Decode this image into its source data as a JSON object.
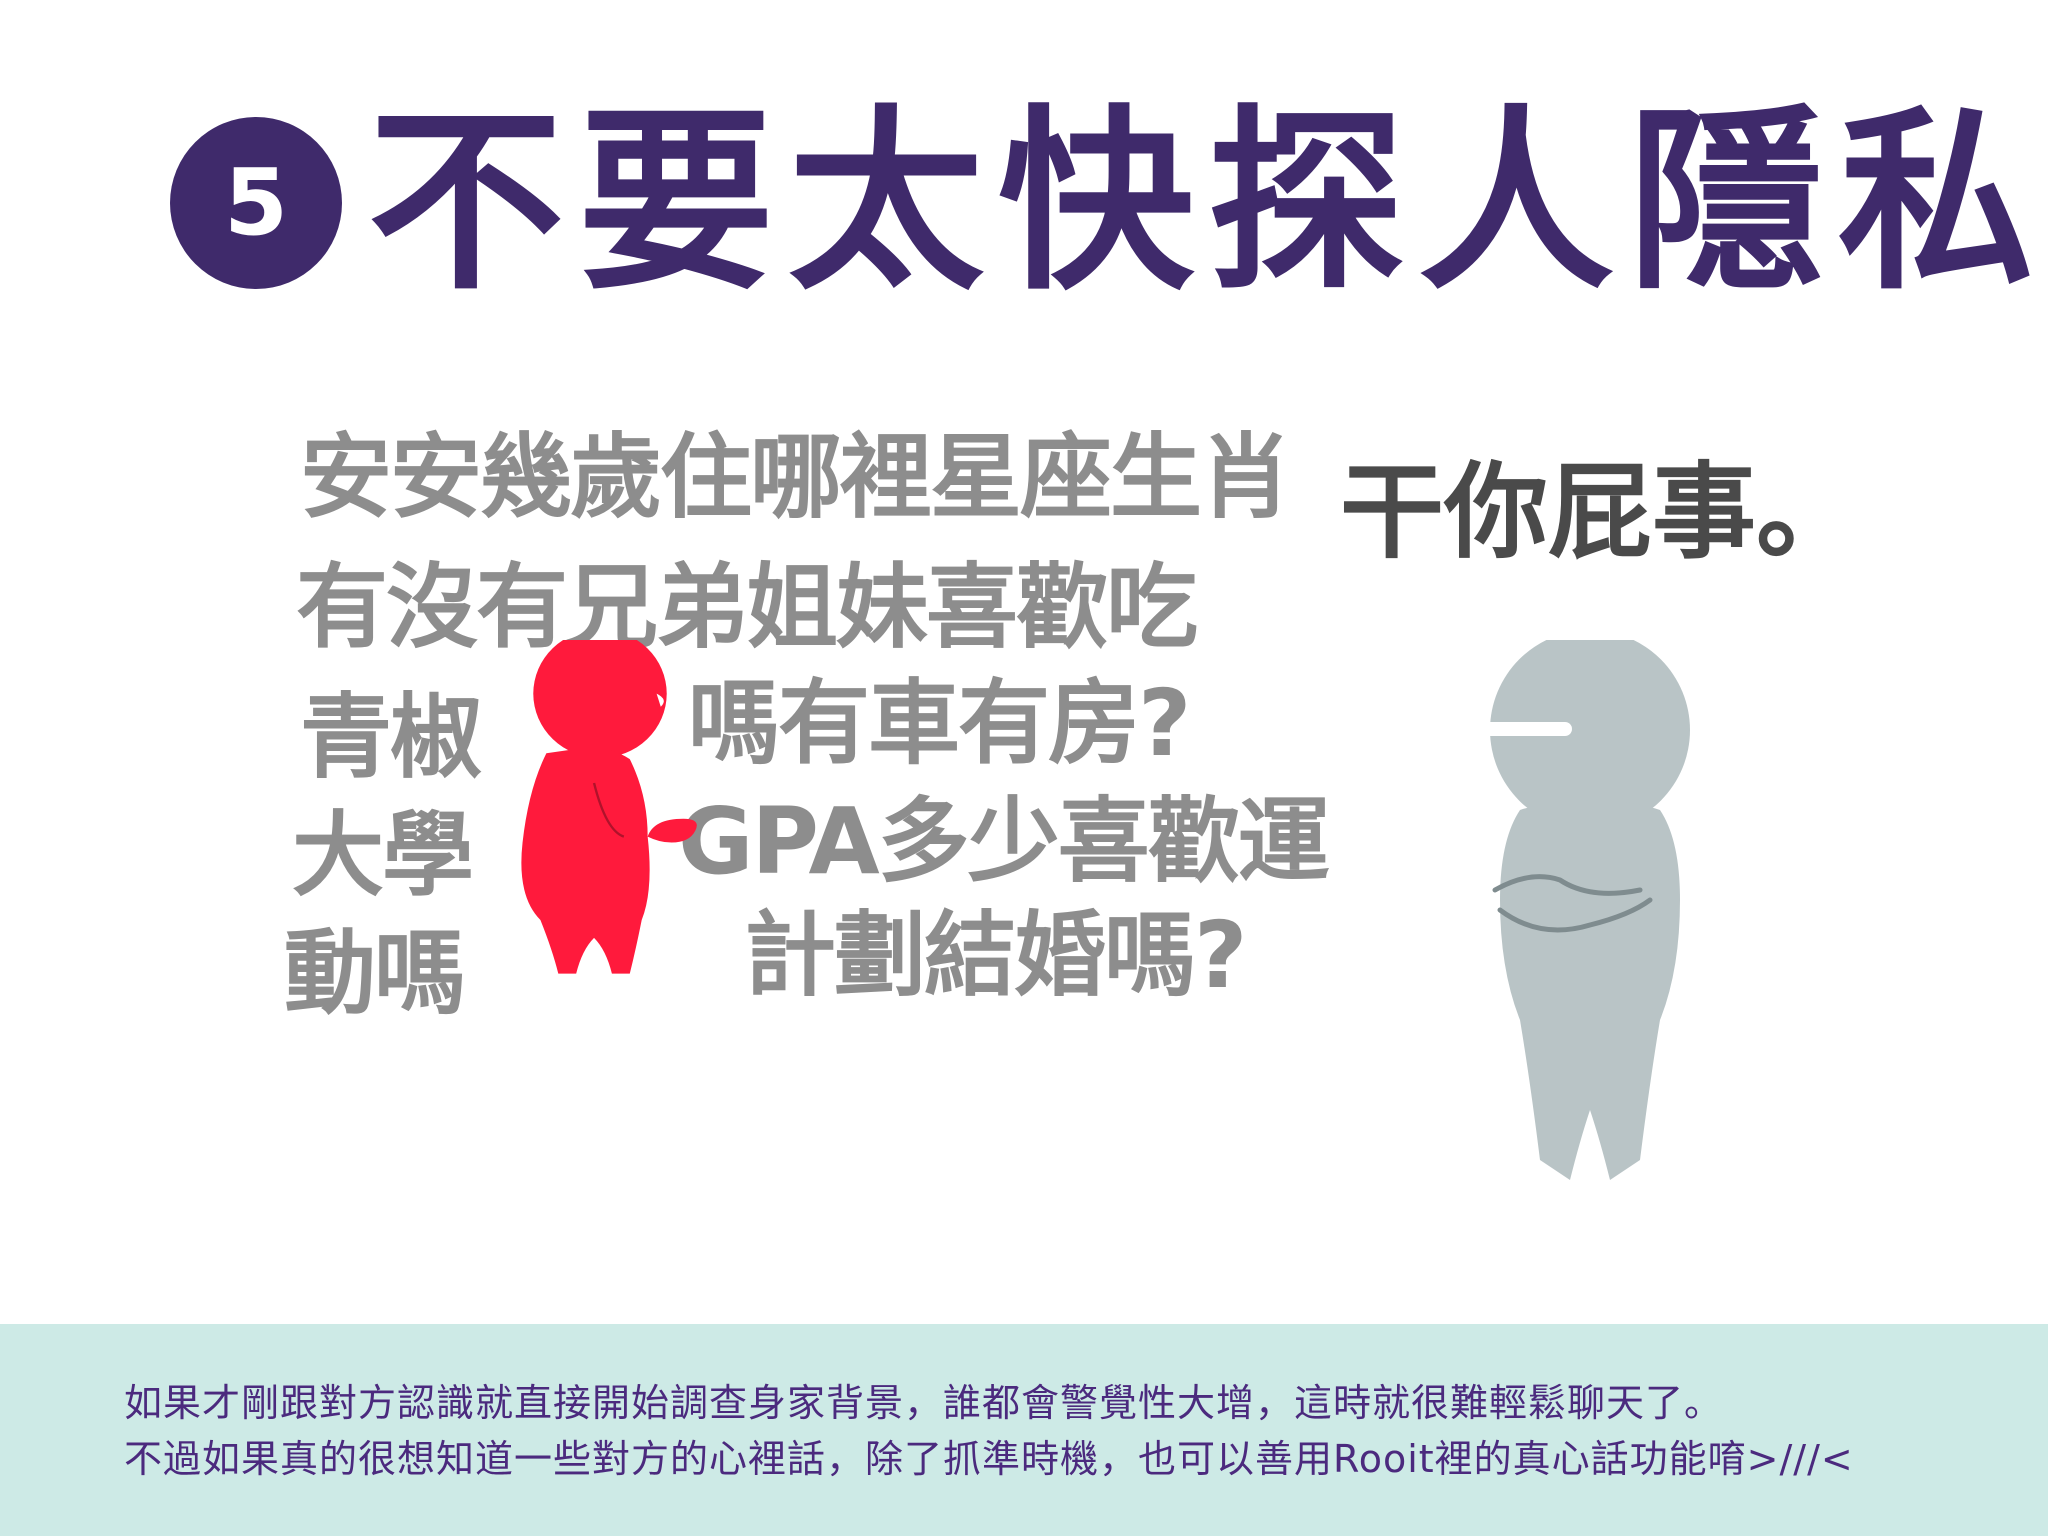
{
  "title": {
    "number": "5",
    "text": "不要太快探人隱私"
  },
  "illustration": {
    "question_lines": [
      "安安幾歲住哪裡星座生肖",
      "有沒有兄弟姐妹喜歡吃",
      "青椒",
      "嗎有車有房?",
      "大學",
      "GPA多少喜歡運",
      "動嗎",
      "計劃結婚嗎?"
    ],
    "reply": "干你屁事。",
    "figures": {
      "speaker_color": "#ff1a3c",
      "listener_color": "#b9c4c6"
    }
  },
  "footer": {
    "background": "#cdeae6",
    "text_color": "#4b2a7e",
    "line1": "如果才剛跟對方認識就直接開始調查身家背景，誰都會警覺性大增，這時就很難輕鬆聊天了。",
    "line2": "不過如果真的很想知道一些對方的心裡話，除了抓準時機，也可以善用Rooit裡的真心話功能唷>///<"
  },
  "colors": {
    "title": "#3f2a6b",
    "question_text": "#8d8d8d",
    "reply_text": "#4a4a4a"
  }
}
